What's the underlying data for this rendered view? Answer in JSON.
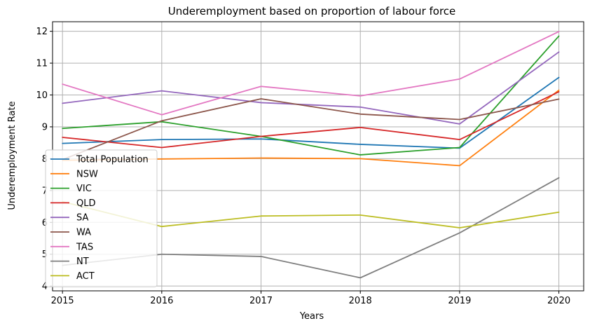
{
  "chart_data": {
    "type": "line",
    "title": "Underemployment based on proportion of labour force",
    "xlabel": "Years",
    "ylabel": "Underemployment Rate",
    "x": [
      "2015",
      "2016",
      "2017",
      "2018",
      "2019",
      "2020"
    ],
    "xlim": [
      2014.9,
      2020.25
    ],
    "ylim": [
      3.85,
      12.3
    ],
    "yticks": [
      "4",
      "5",
      "6",
      "7",
      "8",
      "9",
      "10",
      "11",
      "12"
    ],
    "grid": true,
    "legend_position": "lower-left",
    "series": [
      {
        "name": "Total Population",
        "color": "#1f77b4",
        "values": [
          8.48,
          8.6,
          8.62,
          8.45,
          8.33,
          10.55
        ]
      },
      {
        "name": "NSW",
        "color": "#ff7f0e",
        "values": [
          7.95,
          7.99,
          8.02,
          8.0,
          7.78,
          10.15
        ]
      },
      {
        "name": "VIC",
        "color": "#2ca02c",
        "values": [
          8.95,
          9.16,
          8.7,
          8.12,
          8.35,
          11.85
        ]
      },
      {
        "name": "QLD",
        "color": "#d62728",
        "values": [
          8.67,
          8.35,
          8.7,
          8.98,
          8.6,
          10.1
        ]
      },
      {
        "name": "SA",
        "color": "#9467bd",
        "values": [
          9.74,
          10.13,
          9.76,
          9.62,
          9.09,
          11.35
        ]
      },
      {
        "name": "WA",
        "color": "#8c564b",
        "values": [
          7.97,
          9.19,
          9.88,
          9.4,
          9.23,
          9.87
        ]
      },
      {
        "name": "TAS",
        "color": "#e377c2",
        "values": [
          10.34,
          9.38,
          10.27,
          9.97,
          10.5,
          11.99
        ]
      },
      {
        "name": "NT",
        "color": "#7f7f7f",
        "values": [
          4.65,
          5.0,
          4.93,
          4.26,
          5.67,
          7.4
        ]
      },
      {
        "name": "ACT",
        "color": "#bcbd22",
        "values": [
          6.65,
          5.87,
          6.2,
          6.23,
          5.83,
          6.32
        ]
      }
    ]
  }
}
